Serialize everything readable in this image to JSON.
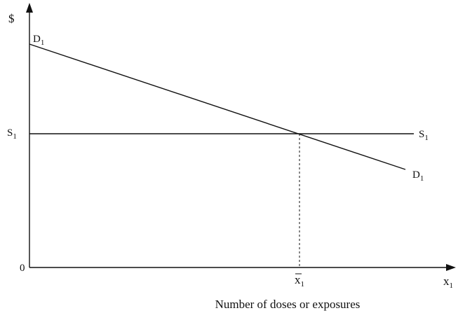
{
  "diagram": {
    "y_axis_label": "$",
    "origin_label": "0",
    "demand_left": {
      "main": "D",
      "sub": "1"
    },
    "demand_right": {
      "main": "D",
      "sub": "1"
    },
    "supply_left": {
      "main": "S",
      "sub": "1"
    },
    "supply_right": {
      "main": "S",
      "sub": "1"
    },
    "equilibrium_x": {
      "main": "x",
      "sub": "1"
    },
    "x_axis_label": {
      "main": "x",
      "sub": "1"
    },
    "x_axis_title": "Number of doses or exposures"
  }
}
